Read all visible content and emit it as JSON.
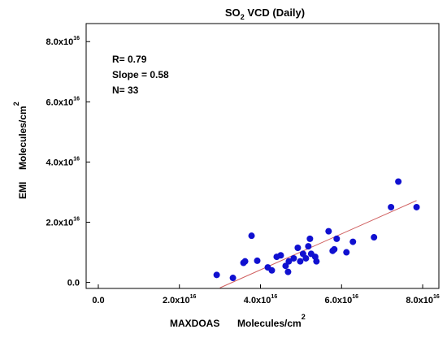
{
  "chart_data": {
    "type": "scatter",
    "title_main": "SO",
    "title_sub": "2",
    "title_rest": " VCD (Daily)",
    "xlabel": "MAXDOAS",
    "xunit": "Molecules/cm",
    "xunit_sup": "2",
    "ylabel": "EMI",
    "yunit": "Molecules/cm",
    "yunit_sup": "2",
    "x_ticks": [
      {
        "value": 0,
        "base": "0.0",
        "exp": ""
      },
      {
        "value": 2,
        "base": "2.0x10",
        "exp": "16"
      },
      {
        "value": 4,
        "base": "4.0x10",
        "exp": "16"
      },
      {
        "value": 6,
        "base": "6.0x10",
        "exp": "16"
      },
      {
        "value": 8,
        "base": "8.0x10",
        "exp": "16"
      }
    ],
    "y_ticks": [
      {
        "value": 0,
        "base": "0.0",
        "exp": ""
      },
      {
        "value": 2,
        "base": "2.0x10",
        "exp": "16"
      },
      {
        "value": 4,
        "base": "4.0x10",
        "exp": "16"
      },
      {
        "value": 6,
        "base": "6.0x10",
        "exp": "16"
      },
      {
        "value": 8,
        "base": "8.0x10",
        "exp": "16"
      }
    ],
    "xlim": [
      -0.3,
      8.4
    ],
    "ylim": [
      -0.2,
      8.6
    ],
    "unit_scale": "x10^16",
    "stats": {
      "r": "R= 0.79",
      "slope": "Slope = 0.58",
      "n": "N= 33"
    },
    "points": [
      {
        "x": 2.92,
        "y": 0.25
      },
      {
        "x": 3.32,
        "y": 0.15
      },
      {
        "x": 3.58,
        "y": 0.65
      },
      {
        "x": 3.62,
        "y": 0.7
      },
      {
        "x": 3.78,
        "y": 1.55
      },
      {
        "x": 3.92,
        "y": 0.72
      },
      {
        "x": 4.18,
        "y": 0.5
      },
      {
        "x": 4.28,
        "y": 0.4
      },
      {
        "x": 4.5,
        "y": 0.9
      },
      {
        "x": 4.62,
        "y": 0.55
      },
      {
        "x": 4.68,
        "y": 0.35
      },
      {
        "x": 4.7,
        "y": 0.7
      },
      {
        "x": 4.82,
        "y": 0.8
      },
      {
        "x": 4.92,
        "y": 1.15
      },
      {
        "x": 4.98,
        "y": 0.7
      },
      {
        "x": 5.05,
        "y": 0.95
      },
      {
        "x": 5.12,
        "y": 0.8
      },
      {
        "x": 5.18,
        "y": 1.2
      },
      {
        "x": 5.22,
        "y": 1.45
      },
      {
        "x": 5.25,
        "y": 0.95
      },
      {
        "x": 5.35,
        "y": 0.85
      },
      {
        "x": 5.38,
        "y": 0.7
      },
      {
        "x": 5.68,
        "y": 1.7
      },
      {
        "x": 5.78,
        "y": 1.05
      },
      {
        "x": 5.82,
        "y": 1.1
      },
      {
        "x": 5.88,
        "y": 1.45
      },
      {
        "x": 6.12,
        "y": 1.0
      },
      {
        "x": 6.28,
        "y": 1.35
      },
      {
        "x": 6.8,
        "y": 1.5
      },
      {
        "x": 7.22,
        "y": 2.5
      },
      {
        "x": 7.4,
        "y": 3.35
      },
      {
        "x": 7.85,
        "y": 2.5
      },
      {
        "x": 4.4,
        "y": 0.85
      }
    ],
    "fit_line": {
      "x0": 3.0,
      "y0": -0.18,
      "x1": 7.85,
      "y1": 2.72
    },
    "point_color": "#1010d0",
    "line_color": "#d06060",
    "grid": false,
    "frame": "box"
  }
}
